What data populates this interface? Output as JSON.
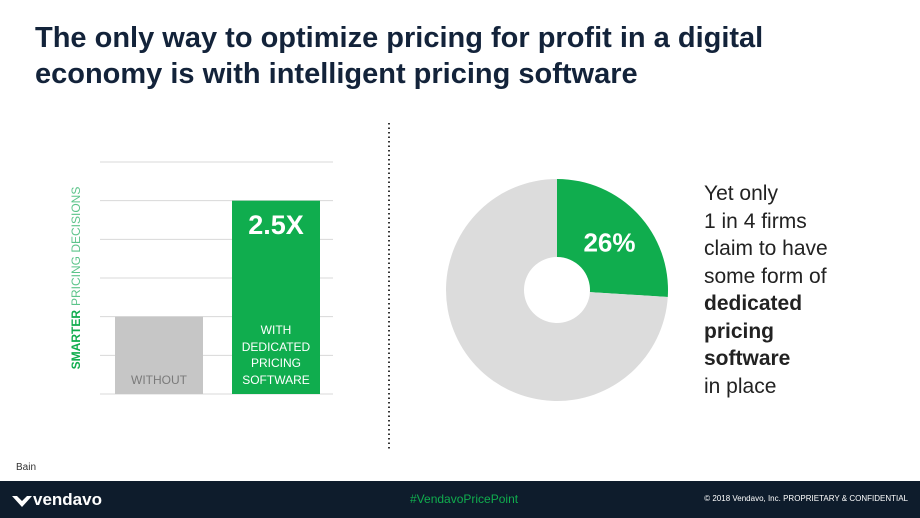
{
  "header": {
    "title": "The only way to optimize pricing for profit in a digital economy is with intelligent pricing software"
  },
  "chart_data": [
    {
      "type": "bar",
      "y_label": {
        "emphasis": "SMARTER",
        "rest": "PRICING DECISIONS"
      },
      "categories": [
        "WITHOUT",
        "WITH DEDICATED PRICING SOFTWARE"
      ],
      "values": [
        1,
        2.5
      ],
      "value_labels": [
        null,
        "2.5X"
      ],
      "colors": [
        "#c6c6c6",
        "#10ad4e"
      ],
      "label_colors": [
        "#7a7a7a",
        "#ffffff"
      ],
      "ylim": [
        0,
        3
      ],
      "yticks": [
        0,
        0.5,
        1,
        1.5,
        2,
        2.5,
        3
      ],
      "grid": true
    },
    {
      "type": "donut",
      "values": [
        26,
        74
      ],
      "value_labels": [
        "26%",
        null
      ],
      "colors": [
        "#10ad4e",
        "#dcdcdc"
      ]
    }
  ],
  "callout": {
    "before": [
      "Yet only",
      "1 in 4 firms",
      "claim to have",
      "some form of"
    ],
    "emphasis": [
      "dedicated",
      "pricing",
      "software"
    ],
    "after": [
      "in place"
    ]
  },
  "source": "Bain",
  "footer": {
    "logo": "vendavo",
    "hashtag": "#VendavoPricePoint",
    "copyright": "© 2018 Vendavo, Inc. PROPRIETARY & CONFIDENTIAL"
  }
}
